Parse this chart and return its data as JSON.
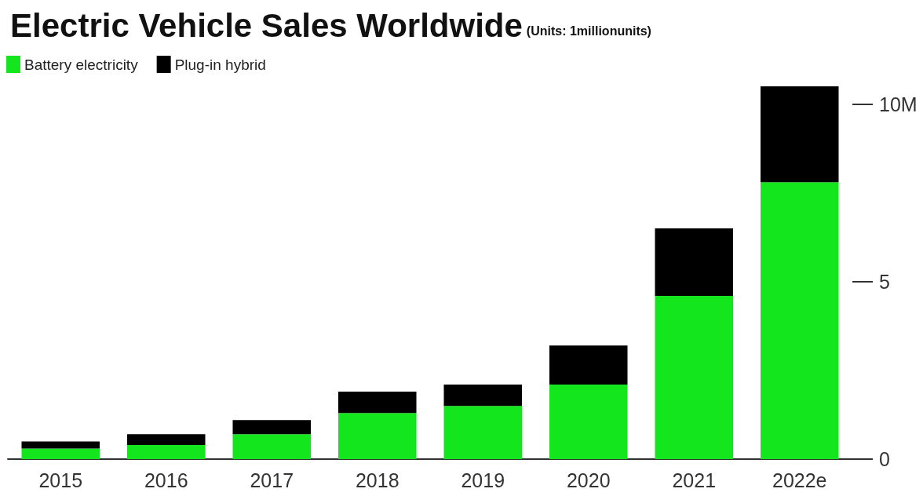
{
  "chart_data": {
    "type": "bar",
    "title": "Electric Vehicle Sales Worldwide",
    "subtitle": "(Units: 1millionunits)",
    "categories": [
      "2015",
      "2016",
      "2017",
      "2018",
      "2019",
      "2020",
      "2021",
      "2022e"
    ],
    "series": [
      {
        "name": "Battery electricity",
        "color": "#14e61e",
        "values": [
          0.3,
          0.4,
          0.7,
          1.3,
          1.5,
          2.1,
          4.6,
          7.8
        ]
      },
      {
        "name": "Plug-in hybrid",
        "color": "#000000",
        "values": [
          0.2,
          0.3,
          0.4,
          0.6,
          0.6,
          1.1,
          1.9,
          2.7
        ]
      }
    ],
    "stacked": true,
    "ylim": [
      0,
      10.5
    ],
    "yticks": [
      0,
      5,
      {
        "value": 10,
        "label": "10M"
      }
    ],
    "grid": false,
    "legend": "top left"
  }
}
